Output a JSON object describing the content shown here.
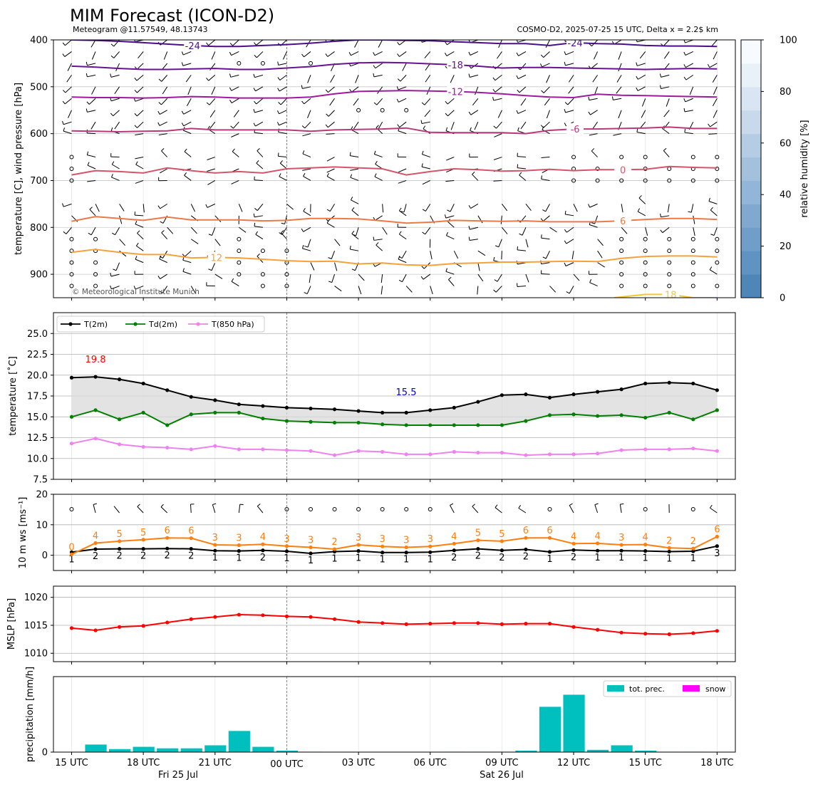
{
  "header": {
    "title": "MIM Forecast (ICON-D2)",
    "subtitle_left": "Meteogram @11.57549, 48.13743",
    "subtitle_right": "COSMO-D2, 2025-07-25 15 UTC, Delta x = 2.2$ km",
    "copyright": "© Meteorological Institute Munich"
  },
  "time_axis": {
    "tick_labels": [
      "15 UTC",
      "18 UTC",
      "21 UTC",
      "00 UTC",
      "03 UTC",
      "06 UTC",
      "09 UTC",
      "12 UTC",
      "15 UTC",
      "18 UTC"
    ],
    "date_labels": [
      "Fri 25 Jul",
      "Sat 26 Jul"
    ],
    "hours": [
      "15",
      "16",
      "17",
      "18",
      "19",
      "20",
      "21",
      "22",
      "23",
      "00",
      "01",
      "02",
      "03",
      "04",
      "05",
      "06",
      "07",
      "08",
      "09",
      "10",
      "11",
      "12",
      "13",
      "14",
      "15",
      "16",
      "17",
      "18"
    ]
  },
  "colors": {
    "t2m": "#000000",
    "td2m": "#008000",
    "t850": "#ee82ee",
    "wind_speed": "#ff7f0e",
    "mslp": "#ff0000",
    "precip": "#00bfbf",
    "snow": "#ff00ff",
    "rh_low": "#4f86b8",
    "rh_high": "#f7fbff"
  },
  "chart_data": [
    {
      "type": "line",
      "name": "upper-air",
      "ylabel": "temperature [C], wind pressure [hPa]",
      "ylim": [
        950,
        400
      ],
      "yticks": [
        "400",
        "500",
        "600",
        "700",
        "800",
        "900"
      ],
      "colorbar": {
        "label": "relative humidity [%]",
        "ticks": [
          "0",
          "20",
          "40",
          "60",
          "80",
          "100"
        ],
        "range": [
          0,
          100
        ]
      },
      "isotherms": [
        {
          "label": "-24",
          "color": "#4b0f8a",
          "p": [
            400,
            401,
            403,
            406,
            409,
            412,
            414,
            414,
            412,
            410,
            407,
            403,
            400,
            400,
            401,
            402,
            404,
            406,
            408,
            408,
            412,
            406,
            408,
            409,
            412,
            413,
            413,
            414
          ]
        },
        {
          "label": "-18",
          "color": "#6a1294",
          "p": [
            456,
            458,
            461,
            463,
            463,
            462,
            461,
            463,
            463,
            460,
            457,
            452,
            449,
            448,
            449,
            451,
            453,
            456,
            460,
            459,
            459,
            460,
            461,
            462,
            463,
            462,
            461,
            462
          ]
        },
        {
          "label": "-12",
          "color": "#9c1b9e",
          "p": [
            522,
            523,
            523,
            524,
            523,
            521,
            522,
            524,
            524,
            524,
            522,
            515,
            510,
            509,
            508,
            509,
            510,
            512,
            515,
            519,
            522,
            523,
            516,
            518,
            519,
            520,
            521,
            522
          ]
        },
        {
          "label": "-6",
          "color": "#b9397d",
          "p": [
            594,
            595,
            596,
            595,
            594,
            589,
            592,
            592,
            592,
            592,
            595,
            592,
            591,
            590,
            588,
            597,
            598,
            598,
            598,
            600,
            593,
            590,
            590,
            589,
            588,
            586,
            589,
            589
          ]
        },
        {
          "label": "0",
          "color": "#d45569",
          "p": [
            688,
            679,
            681,
            684,
            673,
            679,
            684,
            681,
            684,
            675,
            673,
            671,
            673,
            675,
            688,
            681,
            675,
            677,
            680,
            679,
            676,
            679,
            677,
            677,
            676,
            670,
            672,
            673
          ]
        },
        {
          "label": "6",
          "color": "#ec7a47",
          "p": [
            787,
            777,
            781,
            785,
            778,
            784,
            784,
            784,
            786,
            785,
            781,
            781,
            782,
            786,
            791,
            789,
            785,
            786,
            787,
            786,
            788,
            788,
            788,
            786,
            783,
            781,
            781,
            783
          ]
        },
        {
          "label": "12",
          "color": "#f7a13a",
          "p": [
            853,
            847,
            853,
            858,
            858,
            865,
            864,
            865,
            868,
            871,
            873,
            872,
            878,
            876,
            880,
            881,
            877,
            876,
            874,
            874,
            873,
            872,
            873,
            866,
            862,
            861,
            861,
            863
          ]
        },
        {
          "label": "18",
          "color": "#f6c532",
          "p": [
            null,
            null,
            null,
            null,
            null,
            null,
            null,
            null,
            null,
            null,
            null,
            null,
            null,
            null,
            null,
            null,
            null,
            null,
            null,
            null,
            null,
            null,
            null,
            null,
            943,
            943,
            950,
            950
          ]
        }
      ]
    },
    {
      "type": "line",
      "name": "surface-temperature",
      "ylabel": "temperature [˚C]",
      "ylim": [
        7.5,
        27.5
      ],
      "yticks": [
        "7.5",
        "10.0",
        "12.5",
        "15.0",
        "17.5",
        "20.0",
        "22.5",
        "25.0"
      ],
      "legend": [
        "T(2m)",
        "Td(2m)",
        "T(850 hPa)"
      ],
      "legend_position": "top-left",
      "max_label": "19.8",
      "min_label": "15.5",
      "series": [
        {
          "name": "T(2m)",
          "values": [
            19.7,
            19.8,
            19.5,
            19.0,
            18.2,
            17.4,
            17.0,
            16.5,
            16.3,
            16.1,
            16.0,
            15.9,
            15.7,
            15.5,
            15.5,
            15.8,
            16.1,
            16.8,
            17.6,
            17.7,
            17.3,
            17.7,
            18.0,
            18.3,
            19.0,
            19.1,
            19.0,
            18.2
          ]
        },
        {
          "name": "Td(2m)",
          "values": [
            15.0,
            15.8,
            14.7,
            15.5,
            14.0,
            15.3,
            15.5,
            15.5,
            14.8,
            14.5,
            14.4,
            14.3,
            14.3,
            14.1,
            14.0,
            14.0,
            14.0,
            14.0,
            14.0,
            14.5,
            15.2,
            15.3,
            15.1,
            15.2,
            14.9,
            15.5,
            14.7,
            15.8
          ]
        },
        {
          "name": "T(850 hPa)",
          "values": [
            11.8,
            12.4,
            11.7,
            11.4,
            11.3,
            11.1,
            11.5,
            11.1,
            11.1,
            11.0,
            10.9,
            10.4,
            10.9,
            10.8,
            10.5,
            10.5,
            10.8,
            10.7,
            10.7,
            10.4,
            10.5,
            10.5,
            10.6,
            11.0,
            11.1,
            11.1,
            11.2,
            10.9
          ]
        }
      ]
    },
    {
      "type": "line",
      "name": "10m-wind",
      "ylabel": "10 m ws [ms⁻¹]",
      "ylim": [
        -5,
        20
      ],
      "yticks": [
        "0",
        "10",
        "20"
      ],
      "series": [
        {
          "name": "wind speed",
          "values": [
            1.0,
            2.0,
            2.1,
            2.1,
            2.2,
            2.1,
            1.5,
            1.4,
            1.6,
            1.3,
            0.6,
            1.2,
            1.4,
            0.9,
            0.9,
            1.0,
            1.6,
            2.1,
            1.6,
            1.9,
            1.1,
            1.7,
            1.5,
            1.5,
            1.4,
            1.2,
            1.3,
            3.0
          ],
          "labels": [
            "1",
            "2",
            "2",
            "2",
            "2",
            "2",
            "1",
            "1",
            "2",
            "1",
            "1",
            "1",
            "1",
            "1",
            "1",
            "1",
            "2",
            "2",
            "2",
            "2",
            "1",
            "2",
            "1",
            "1",
            "1",
            "1",
            "1",
            "3"
          ]
        },
        {
          "name": "gusts",
          "values": [
            0.3,
            4.0,
            4.6,
            5.1,
            5.7,
            5.6,
            3.4,
            3.3,
            3.6,
            3.0,
            2.6,
            2.0,
            3.4,
            2.9,
            2.6,
            2.9,
            3.8,
            4.9,
            4.6,
            5.7,
            5.7,
            3.8,
            3.9,
            3.4,
            3.5,
            2.4,
            2.2,
            6.1
          ],
          "labels": [
            "0",
            "4",
            "5",
            "5",
            "6",
            "6",
            "3",
            "3",
            "4",
            "3",
            "3",
            "2",
            "3",
            "3",
            "3",
            "3",
            "4",
            "5",
            "5",
            "6",
            "6",
            "4",
            "4",
            "3",
            "4",
            "2",
            "2",
            "6"
          ]
        }
      ]
    },
    {
      "type": "line",
      "name": "mslp",
      "ylabel": "MSLP [hPa]",
      "ylim": [
        1008.5,
        1022
      ],
      "yticks": [
        "1010",
        "1015",
        "1020"
      ],
      "series": [
        {
          "name": "MSLP",
          "values": [
            1014.5,
            1014.1,
            1014.7,
            1014.9,
            1015.5,
            1016.1,
            1016.5,
            1016.9,
            1016.8,
            1016.6,
            1016.5,
            1016.1,
            1015.6,
            1015.4,
            1015.2,
            1015.3,
            1015.4,
            1015.4,
            1015.2,
            1015.3,
            1015.3,
            1014.7,
            1014.2,
            1013.7,
            1013.5,
            1013.4,
            1013.6,
            1014.0
          ]
        }
      ]
    },
    {
      "type": "bar",
      "name": "precipitation",
      "ylabel": "precipitation [mm/h]",
      "ylim": [
        0,
        1.0
      ],
      "yticks": [
        "0"
      ],
      "legend": [
        "tot. prec.",
        "snow"
      ],
      "legend_position": "top-right",
      "series": [
        {
          "name": "tot. prec.",
          "values": [
            0,
            0.1,
            0.04,
            0.07,
            0.05,
            0.05,
            0.09,
            0.28,
            0.07,
            0.02,
            0.005,
            0,
            0,
            0,
            0,
            0,
            0.005,
            0.005,
            0.005,
            0.02,
            0.6,
            0.76,
            0.03,
            0.09,
            0.02,
            0.005,
            0.005,
            0
          ]
        }
      ]
    }
  ]
}
